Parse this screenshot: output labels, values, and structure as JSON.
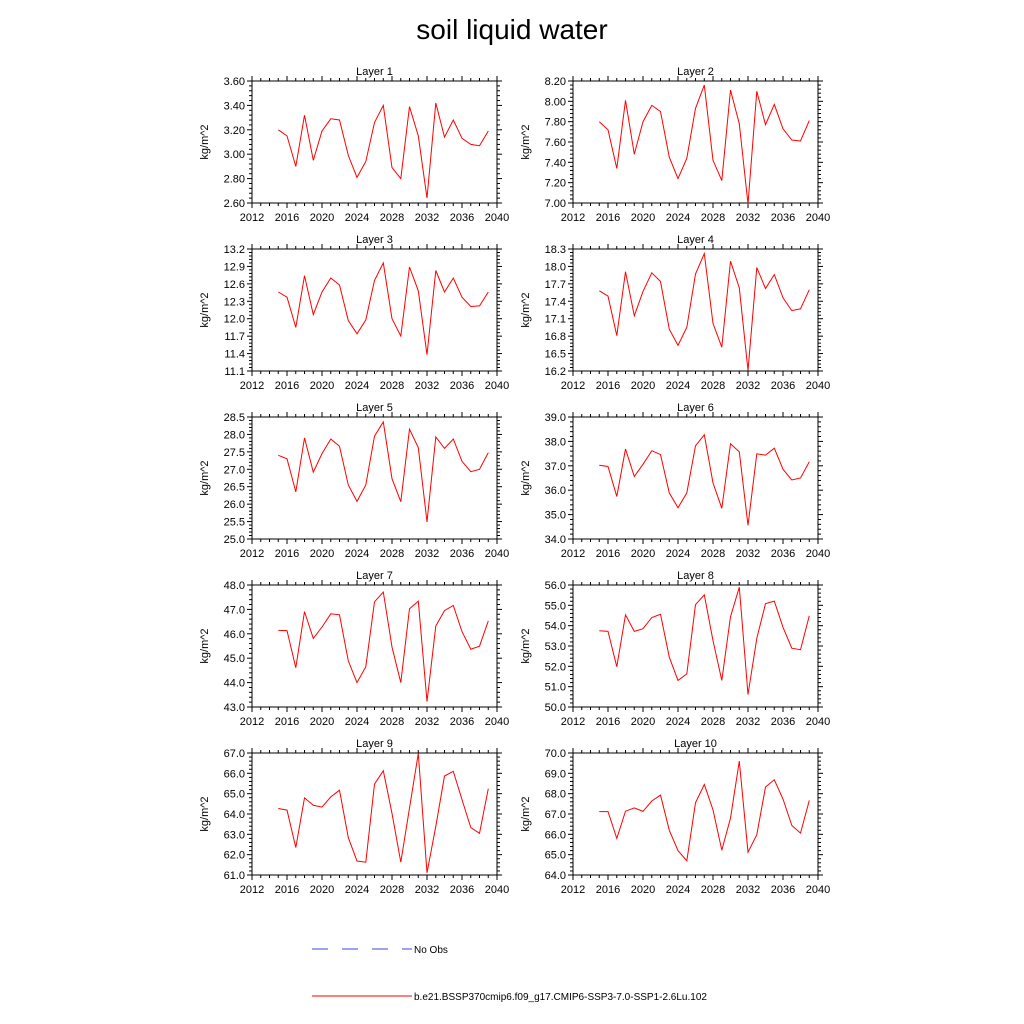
{
  "title": "soil liquid water",
  "legend": {
    "obs_label": "No Obs",
    "model_label": "b.e21.BSSP370cmip6.f09_g17.CMIP6-SSP3-7.0-SSP1-2.6Lu.102",
    "obs_color": "#3b4ad0",
    "model_color": "#ff0000"
  },
  "chart_data": [
    {
      "type": "line",
      "title": "Layer 1",
      "xlabel": "",
      "ylabel": "kg/m^2",
      "xlim": [
        2012,
        2040
      ],
      "ylim": [
        2.6,
        3.6
      ],
      "x_ticks": [
        "2012",
        "2016",
        "2020",
        "2024",
        "2028",
        "2032",
        "2036",
        "2040"
      ],
      "y_ticks": [
        "2.60",
        "2.80",
        "3.00",
        "3.20",
        "3.40",
        "3.60"
      ],
      "series": [
        {
          "name": "b.e21.BSSP370cmip6.f09_g17.CMIP6-SSP3-7.0-SSP1-2.6Lu.102",
          "color": "#ff0000",
          "x": [
            2015,
            2016,
            2017,
            2018,
            2019,
            2020,
            2021,
            2022,
            2023,
            2024,
            2025,
            2026,
            2027,
            2028,
            2029,
            2030,
            2031,
            2032,
            2033,
            2034,
            2035,
            2036,
            2037,
            2038,
            2039
          ],
          "values": [
            3.2,
            3.15,
            2.9,
            3.32,
            2.95,
            3.19,
            3.29,
            3.28,
            2.99,
            2.81,
            2.94,
            3.26,
            3.4,
            2.89,
            2.8,
            3.39,
            3.15,
            2.64,
            3.42,
            3.14,
            3.28,
            3.13,
            3.08,
            3.07,
            3.19
          ]
        }
      ]
    },
    {
      "type": "line",
      "title": "Layer 2",
      "xlabel": "",
      "ylabel": "kg/m^2",
      "xlim": [
        2012,
        2040
      ],
      "ylim": [
        7.0,
        8.2
      ],
      "x_ticks": [
        "2012",
        "2016",
        "2020",
        "2024",
        "2028",
        "2032",
        "2036",
        "2040"
      ],
      "y_ticks": [
        "7.00",
        "7.20",
        "7.40",
        "7.60",
        "7.80",
        "8.00",
        "8.20"
      ],
      "series": [
        {
          "name": "b.e21.BSSP370cmip6.f09_g17.CMIP6-SSP3-7.0-SSP1-2.6Lu.102",
          "color": "#ff0000",
          "x": [
            2015,
            2016,
            2017,
            2018,
            2019,
            2020,
            2021,
            2022,
            2023,
            2024,
            2025,
            2026,
            2027,
            2028,
            2029,
            2030,
            2031,
            2032,
            2033,
            2034,
            2035,
            2036,
            2037,
            2038,
            2039
          ],
          "values": [
            7.8,
            7.72,
            7.34,
            8.01,
            7.48,
            7.8,
            7.96,
            7.9,
            7.45,
            7.24,
            7.44,
            7.93,
            8.16,
            7.42,
            7.22,
            8.11,
            7.78,
            6.99,
            8.1,
            7.77,
            7.97,
            7.73,
            7.62,
            7.61,
            7.81
          ]
        }
      ]
    },
    {
      "type": "line",
      "title": "Layer 3",
      "xlabel": "",
      "ylabel": "kg/m^2",
      "xlim": [
        2012,
        2040
      ],
      "ylim": [
        11.1,
        13.2
      ],
      "x_ticks": [
        "2012",
        "2016",
        "2020",
        "2024",
        "2028",
        "2032",
        "2036",
        "2040"
      ],
      "y_ticks": [
        "11.1",
        "11.4",
        "11.7",
        "12.0",
        "12.3",
        "12.6",
        "12.9",
        "13.2"
      ],
      "series": [
        {
          "name": "b.e21.BSSP370cmip6.f09_g17.CMIP6-SSP3-7.0-SSP1-2.6Lu.102",
          "color": "#ff0000",
          "x": [
            2015,
            2016,
            2017,
            2018,
            2019,
            2020,
            2021,
            2022,
            2023,
            2024,
            2025,
            2026,
            2027,
            2028,
            2029,
            2030,
            2031,
            2032,
            2033,
            2034,
            2035,
            2036,
            2037,
            2038,
            2039
          ],
          "values": [
            12.46,
            12.37,
            11.85,
            12.74,
            12.07,
            12.46,
            12.7,
            12.58,
            11.97,
            11.74,
            11.98,
            12.66,
            12.96,
            12.0,
            11.7,
            12.89,
            12.48,
            11.38,
            12.83,
            12.46,
            12.7,
            12.37,
            12.21,
            12.22,
            12.46
          ]
        }
      ]
    },
    {
      "type": "line",
      "title": "Layer 4",
      "xlabel": "",
      "ylabel": "kg/m^2",
      "xlim": [
        2012,
        2040
      ],
      "ylim": [
        16.2,
        18.3
      ],
      "x_ticks": [
        "2012",
        "2016",
        "2020",
        "2024",
        "2028",
        "2032",
        "2036",
        "2040"
      ],
      "y_ticks": [
        "16.2",
        "16.5",
        "16.8",
        "17.1",
        "17.4",
        "17.7",
        "18.0",
        "18.3"
      ],
      "series": [
        {
          "name": "b.e21.BSSP370cmip6.f09_g17.CMIP6-SSP3-7.0-SSP1-2.6Lu.102",
          "color": "#ff0000",
          "x": [
            2015,
            2016,
            2017,
            2018,
            2019,
            2020,
            2021,
            2022,
            2023,
            2024,
            2025,
            2026,
            2027,
            2028,
            2029,
            2030,
            2031,
            2032,
            2033,
            2034,
            2035,
            2036,
            2037,
            2038,
            2039
          ],
          "values": [
            17.58,
            17.49,
            16.81,
            17.91,
            17.15,
            17.57,
            17.89,
            17.74,
            16.92,
            16.64,
            16.95,
            17.87,
            18.22,
            17.02,
            16.61,
            18.09,
            17.63,
            16.21,
            17.98,
            17.62,
            17.86,
            17.46,
            17.24,
            17.27,
            17.6
          ]
        }
      ]
    },
    {
      "type": "line",
      "title": "Layer 5",
      "xlabel": "",
      "ylabel": "kg/m^2",
      "xlim": [
        2012,
        2040
      ],
      "ylim": [
        25.0,
        28.5
      ],
      "x_ticks": [
        "2012",
        "2016",
        "2020",
        "2024",
        "2028",
        "2032",
        "2036",
        "2040"
      ],
      "y_ticks": [
        "25.0",
        "25.5",
        "26.0",
        "26.5",
        "27.0",
        "27.5",
        "28.0",
        "28.5"
      ],
      "series": [
        {
          "name": "b.e21.BSSP370cmip6.f09_g17.CMIP6-SSP3-7.0-SSP1-2.6Lu.102",
          "color": "#ff0000",
          "x": [
            2015,
            2016,
            2017,
            2018,
            2019,
            2020,
            2021,
            2022,
            2023,
            2024,
            2025,
            2026,
            2027,
            2028,
            2029,
            2030,
            2031,
            2032,
            2033,
            2034,
            2035,
            2036,
            2037,
            2038,
            2039
          ],
          "values": [
            27.4,
            27.3,
            26.35,
            27.9,
            26.92,
            27.45,
            27.87,
            27.66,
            26.55,
            26.08,
            26.55,
            27.95,
            28.36,
            26.73,
            26.07,
            28.15,
            27.62,
            25.49,
            27.93,
            27.6,
            27.87,
            27.23,
            26.93,
            27.0,
            27.48
          ]
        }
      ]
    },
    {
      "type": "line",
      "title": "Layer 6",
      "xlabel": "",
      "ylabel": "kg/m^2",
      "xlim": [
        2012,
        2040
      ],
      "ylim": [
        34.0,
        39.0
      ],
      "x_ticks": [
        "2012",
        "2016",
        "2020",
        "2024",
        "2028",
        "2032",
        "2036",
        "2040"
      ],
      "y_ticks": [
        "34.0",
        "35.0",
        "36.0",
        "37.0",
        "38.0",
        "39.0"
      ],
      "series": [
        {
          "name": "b.e21.BSSP370cmip6.f09_g17.CMIP6-SSP3-7.0-SSP1-2.6Lu.102",
          "color": "#ff0000",
          "x": [
            2015,
            2016,
            2017,
            2018,
            2019,
            2020,
            2021,
            2022,
            2023,
            2024,
            2025,
            2026,
            2027,
            2028,
            2029,
            2030,
            2031,
            2032,
            2033,
            2034,
            2035,
            2036,
            2037,
            2038,
            2039
          ],
          "values": [
            37.02,
            36.97,
            35.74,
            37.69,
            36.56,
            37.06,
            37.62,
            37.46,
            35.89,
            35.28,
            35.89,
            37.82,
            38.27,
            36.3,
            35.26,
            37.9,
            37.57,
            34.56,
            37.49,
            37.44,
            37.72,
            36.86,
            36.42,
            36.5,
            37.17
          ]
        }
      ]
    },
    {
      "type": "line",
      "title": "Layer 7",
      "xlabel": "",
      "ylabel": "kg/m^2",
      "xlim": [
        2012,
        2040
      ],
      "ylim": [
        43.0,
        48.0
      ],
      "x_ticks": [
        "2012",
        "2016",
        "2020",
        "2024",
        "2028",
        "2032",
        "2036",
        "2040"
      ],
      "y_ticks": [
        "43.0",
        "44.0",
        "45.0",
        "46.0",
        "47.0",
        "48.0"
      ],
      "series": [
        {
          "name": "b.e21.BSSP370cmip6.f09_g17.CMIP6-SSP3-7.0-SSP1-2.6Lu.102",
          "color": "#ff0000",
          "x": [
            2015,
            2016,
            2017,
            2018,
            2019,
            2020,
            2021,
            2022,
            2023,
            2024,
            2025,
            2026,
            2027,
            2028,
            2029,
            2030,
            2031,
            2032,
            2033,
            2034,
            2035,
            2036,
            2037,
            2038,
            2039
          ],
          "values": [
            46.14,
            46.13,
            44.61,
            46.91,
            45.81,
            46.28,
            46.82,
            46.78,
            44.89,
            44.0,
            44.65,
            47.31,
            47.71,
            45.46,
            44.0,
            47.03,
            47.34,
            43.22,
            46.32,
            46.95,
            47.16,
            46.09,
            45.37,
            45.49,
            46.53
          ]
        }
      ]
    },
    {
      "type": "line",
      "title": "Layer 8",
      "xlabel": "",
      "ylabel": "kg/m^2",
      "xlim": [
        2012,
        2040
      ],
      "ylim": [
        50.0,
        56.0
      ],
      "x_ticks": [
        "2012",
        "2016",
        "2020",
        "2024",
        "2028",
        "2032",
        "2036",
        "2040"
      ],
      "y_ticks": [
        "50.0",
        "51.0",
        "52.0",
        "53.0",
        "54.0",
        "55.0",
        "56.0"
      ],
      "series": [
        {
          "name": "b.e21.BSSP370cmip6.f09_g17.CMIP6-SSP3-7.0-SSP1-2.6Lu.102",
          "color": "#ff0000",
          "x": [
            2015,
            2016,
            2017,
            2018,
            2019,
            2020,
            2021,
            2022,
            2023,
            2024,
            2025,
            2026,
            2027,
            2028,
            2029,
            2030,
            2031,
            2032,
            2033,
            2034,
            2035,
            2036,
            2037,
            2038,
            2039
          ],
          "values": [
            53.75,
            53.72,
            51.98,
            54.53,
            53.72,
            53.85,
            54.4,
            54.56,
            52.45,
            51.31,
            51.63,
            55.03,
            55.52,
            53.26,
            51.31,
            54.44,
            55.89,
            50.61,
            53.38,
            55.08,
            55.21,
            53.92,
            52.89,
            52.82,
            54.49
          ]
        }
      ]
    },
    {
      "type": "line",
      "title": "Layer 9",
      "xlabel": "",
      "ylabel": "kg/m^2",
      "xlim": [
        2012,
        2040
      ],
      "ylim": [
        61.0,
        67.0
      ],
      "x_ticks": [
        "2012",
        "2016",
        "2020",
        "2024",
        "2028",
        "2032",
        "2036",
        "2040"
      ],
      "y_ticks": [
        "61.0",
        "62.0",
        "63.0",
        "64.0",
        "65.0",
        "66.0",
        "67.0"
      ],
      "series": [
        {
          "name": "b.e21.BSSP370cmip6.f09_g17.CMIP6-SSP3-7.0-SSP1-2.6Lu.102",
          "color": "#ff0000",
          "x": [
            2015,
            2016,
            2017,
            2018,
            2019,
            2020,
            2021,
            2022,
            2023,
            2024,
            2025,
            2026,
            2027,
            2028,
            2029,
            2030,
            2031,
            2032,
            2033,
            2034,
            2035,
            2036,
            2037,
            2038,
            2039
          ],
          "values": [
            64.27,
            64.19,
            62.35,
            64.79,
            64.43,
            64.34,
            64.84,
            65.17,
            62.84,
            61.69,
            61.63,
            65.47,
            66.13,
            64.03,
            61.63,
            64.29,
            66.98,
            61.11,
            63.39,
            65.87,
            66.1,
            64.71,
            63.33,
            63.05,
            65.25
          ]
        }
      ]
    },
    {
      "type": "line",
      "title": "Layer 10",
      "xlabel": "",
      "ylabel": "kg/m^2",
      "xlim": [
        2012,
        2040
      ],
      "ylim": [
        64.0,
        70.0
      ],
      "x_ticks": [
        "2012",
        "2016",
        "2020",
        "2024",
        "2028",
        "2032",
        "2036",
        "2040"
      ],
      "y_ticks": [
        "64.0",
        "65.0",
        "66.0",
        "67.0",
        "68.0",
        "69.0",
        "70.0"
      ],
      "series": [
        {
          "name": "b.e21.BSSP370cmip6.f09_g17.CMIP6-SSP3-7.0-SSP1-2.6Lu.102",
          "color": "#ff0000",
          "x": [
            2015,
            2016,
            2017,
            2018,
            2019,
            2020,
            2021,
            2022,
            2023,
            2024,
            2025,
            2026,
            2027,
            2028,
            2029,
            2030,
            2031,
            2032,
            2033,
            2034,
            2035,
            2036,
            2037,
            2038,
            2039
          ],
          "values": [
            67.12,
            67.12,
            65.8,
            67.14,
            67.3,
            67.13,
            67.64,
            67.93,
            66.2,
            65.2,
            64.7,
            67.55,
            68.45,
            67.2,
            65.22,
            66.8,
            69.6,
            65.12,
            65.98,
            68.33,
            68.68,
            67.74,
            66.44,
            66.06,
            67.67
          ]
        }
      ]
    }
  ]
}
